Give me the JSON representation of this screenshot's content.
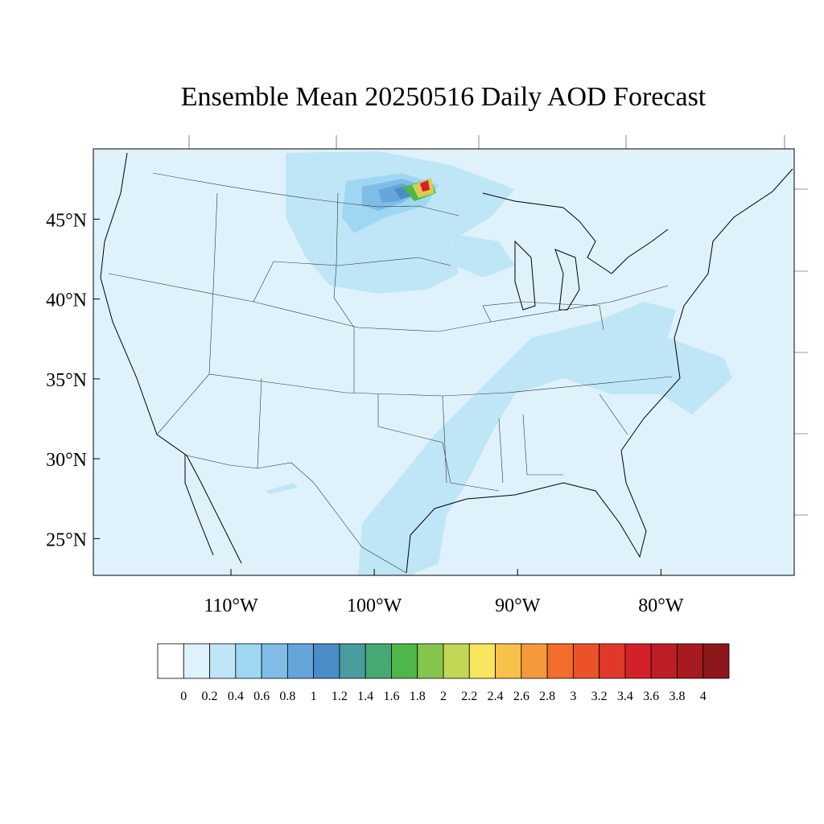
{
  "title": "Ensemble Mean 20250516 Daily AOD Forecast",
  "map": {
    "lonlim": [
      -119.6,
      -70.7
    ],
    "latlim": [
      22.7,
      49.4
    ],
    "lat_ticks": [
      {
        "value": 45,
        "label": "45°N"
      },
      {
        "value": 40,
        "label": "40°N"
      },
      {
        "value": 35,
        "label": "35°N"
      },
      {
        "value": 30,
        "label": "30°N"
      },
      {
        "value": 25,
        "label": "25°N"
      }
    ],
    "lon_ticks": [
      {
        "value": -110,
        "label": "110°W"
      },
      {
        "value": -100,
        "label": "100°W"
      },
      {
        "value": -90,
        "label": "90°W"
      },
      {
        "value": -80,
        "label": "80°W"
      }
    ]
  },
  "colorbar": {
    "levels": [
      0,
      0.2,
      0.4,
      0.6,
      0.8,
      1,
      1.2,
      1.4,
      1.6,
      1.8,
      2,
      2.2,
      2.4,
      2.6,
      2.8,
      3,
      3.2,
      3.4,
      3.6,
      3.8,
      4
    ],
    "colors": [
      "#ffffff",
      "#dff2fb",
      "#bfe6f7",
      "#9fd7f2",
      "#80bde6",
      "#65a6da",
      "#4a8dc9",
      "#4a9b9e",
      "#46a873",
      "#4db848",
      "#85c54c",
      "#c3d656",
      "#f7e65e",
      "#f8c149",
      "#f59a3c",
      "#f26c2c",
      "#ea5229",
      "#e0392a",
      "#d32129",
      "#bd1e25",
      "#a71b20",
      "#8e171b"
    ]
  }
}
